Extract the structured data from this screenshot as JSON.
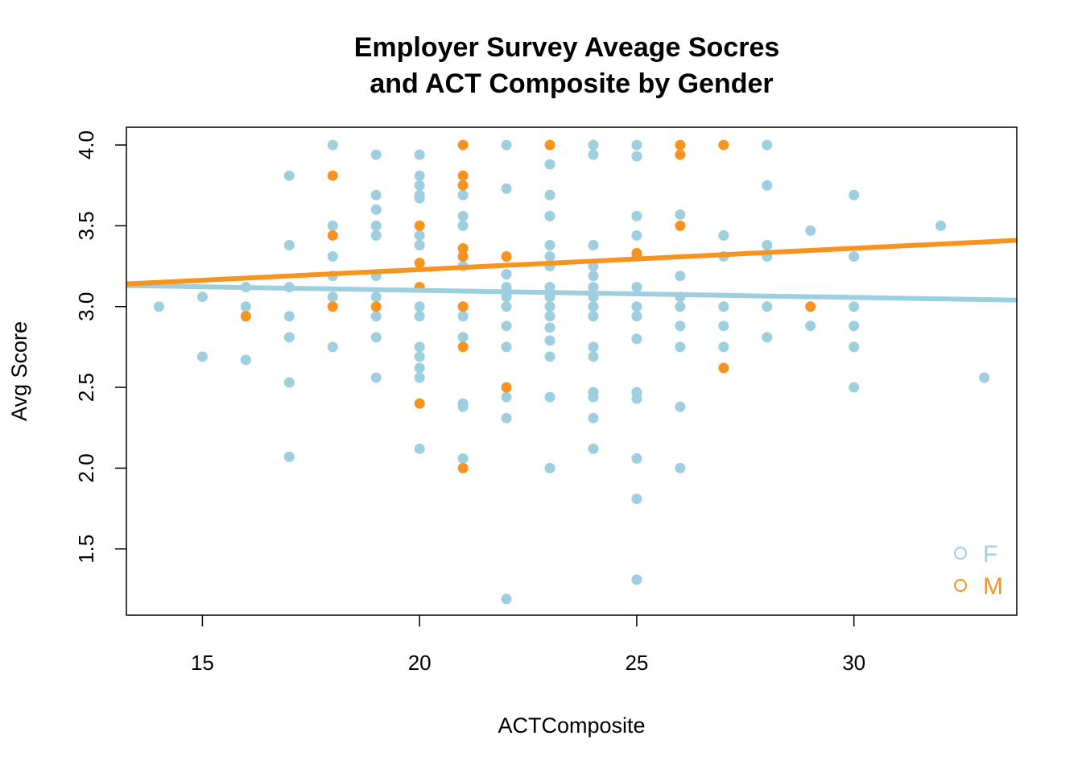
{
  "chart_data": {
    "type": "scatter",
    "title": [
      "Employer Survey Aveage Socres",
      "and ACT Composite by Gender"
    ],
    "xlabel": "ACTComposite",
    "ylabel": "Avg Score",
    "xlim": [
      13.25,
      33.75
    ],
    "ylim": [
      1.09,
      4.11
    ],
    "x_ticks": [
      15,
      20,
      25,
      30
    ],
    "y_ticks": [
      1.5,
      2.0,
      2.5,
      3.0,
      3.5,
      4.0
    ],
    "y_tick_labels": [
      "1.5",
      "2.0",
      "2.5",
      "3.0",
      "3.5",
      "4.0"
    ],
    "grid": false,
    "legend_position": "bottom-right",
    "series": [
      {
        "name": "F",
        "color": "#9ECFE0",
        "points": [
          [
            14,
            3.0
          ],
          [
            15,
            3.06
          ],
          [
            15,
            2.69
          ],
          [
            16,
            3.12
          ],
          [
            16,
            3.0
          ],
          [
            16,
            2.67
          ],
          [
            17,
            3.81
          ],
          [
            17,
            3.38
          ],
          [
            17,
            3.12
          ],
          [
            17,
            2.94
          ],
          [
            17,
            2.81
          ],
          [
            17,
            2.53
          ],
          [
            17,
            2.07
          ],
          [
            18,
            4.0
          ],
          [
            18,
            3.5
          ],
          [
            18,
            3.31
          ],
          [
            18,
            3.19
          ],
          [
            18,
            3.06
          ],
          [
            18,
            2.75
          ],
          [
            19,
            3.94
          ],
          [
            19,
            3.69
          ],
          [
            19,
            3.6
          ],
          [
            19,
            3.5
          ],
          [
            19,
            3.44
          ],
          [
            19,
            3.19
          ],
          [
            19,
            3.06
          ],
          [
            19,
            2.94
          ],
          [
            19,
            2.81
          ],
          [
            19,
            2.56
          ],
          [
            20,
            3.94
          ],
          [
            20,
            3.81
          ],
          [
            20,
            3.75
          ],
          [
            20,
            3.69
          ],
          [
            20,
            3.67
          ],
          [
            20,
            3.44
          ],
          [
            20,
            3.38
          ],
          [
            20,
            3.0
          ],
          [
            20,
            2.94
          ],
          [
            20,
            2.75
          ],
          [
            20,
            2.69
          ],
          [
            20,
            2.62
          ],
          [
            20,
            2.56
          ],
          [
            20,
            2.12
          ],
          [
            21,
            3.69
          ],
          [
            21,
            3.56
          ],
          [
            21,
            3.5
          ],
          [
            21,
            3.25
          ],
          [
            21,
            3.0
          ],
          [
            21,
            2.94
          ],
          [
            21,
            2.81
          ],
          [
            21,
            2.4
          ],
          [
            21,
            2.38
          ],
          [
            21,
            2.06
          ],
          [
            22,
            4.0
          ],
          [
            22,
            3.73
          ],
          [
            22,
            3.31
          ],
          [
            22,
            3.2
          ],
          [
            22,
            3.12
          ],
          [
            22,
            3.06
          ],
          [
            22,
            3.0
          ],
          [
            22,
            2.88
          ],
          [
            22,
            2.75
          ],
          [
            22,
            2.44
          ],
          [
            22,
            2.31
          ],
          [
            22,
            1.19
          ],
          [
            23,
            3.88
          ],
          [
            23,
            3.69
          ],
          [
            23,
            3.56
          ],
          [
            23,
            3.38
          ],
          [
            23,
            3.31
          ],
          [
            23,
            3.25
          ],
          [
            23,
            3.12
          ],
          [
            23,
            3.06
          ],
          [
            23,
            3.0
          ],
          [
            23,
            2.94
          ],
          [
            23,
            2.87
          ],
          [
            23,
            2.79
          ],
          [
            23,
            2.69
          ],
          [
            23,
            2.44
          ],
          [
            23,
            2.0
          ],
          [
            24,
            4.0
          ],
          [
            24,
            3.94
          ],
          [
            24,
            3.38
          ],
          [
            24,
            3.25
          ],
          [
            24,
            3.19
          ],
          [
            24,
            3.12
          ],
          [
            24,
            3.06
          ],
          [
            24,
            3.0
          ],
          [
            24,
            2.94
          ],
          [
            24,
            2.75
          ],
          [
            24,
            2.69
          ],
          [
            24,
            2.47
          ],
          [
            24,
            2.44
          ],
          [
            24,
            2.31
          ],
          [
            24,
            2.12
          ],
          [
            25,
            4.0
          ],
          [
            25,
            3.93
          ],
          [
            25,
            3.56
          ],
          [
            25,
            3.44
          ],
          [
            25,
            3.31
          ],
          [
            25,
            3.12
          ],
          [
            25,
            3.0
          ],
          [
            25,
            2.94
          ],
          [
            25,
            2.8
          ],
          [
            25,
            2.47
          ],
          [
            25,
            2.43
          ],
          [
            25,
            2.06
          ],
          [
            25,
            1.81
          ],
          [
            25,
            1.31
          ],
          [
            26,
            3.57
          ],
          [
            26,
            3.19
          ],
          [
            26,
            3.06
          ],
          [
            26,
            3.0
          ],
          [
            26,
            2.88
          ],
          [
            26,
            2.75
          ],
          [
            26,
            2.38
          ],
          [
            26,
            2.0
          ],
          [
            27,
            3.44
          ],
          [
            27,
            3.31
          ],
          [
            27,
            3.0
          ],
          [
            27,
            2.88
          ],
          [
            27,
            2.75
          ],
          [
            28,
            4.0
          ],
          [
            28,
            3.75
          ],
          [
            28,
            3.38
          ],
          [
            28,
            3.31
          ],
          [
            28,
            3.0
          ],
          [
            28,
            2.81
          ],
          [
            29,
            3.47
          ],
          [
            29,
            2.88
          ],
          [
            30,
            3.69
          ],
          [
            30,
            3.31
          ],
          [
            30,
            3.0
          ],
          [
            30,
            2.88
          ],
          [
            30,
            2.75
          ],
          [
            30,
            2.5
          ],
          [
            32,
            3.5
          ],
          [
            33,
            2.56
          ]
        ],
        "fit_line": [
          [
            13.25,
            3.13
          ],
          [
            33.75,
            3.04
          ]
        ]
      },
      {
        "name": "M",
        "color": "#F7931E",
        "points": [
          [
            16,
            2.94
          ],
          [
            18,
            3.81
          ],
          [
            18,
            3.44
          ],
          [
            18,
            3.0
          ],
          [
            19,
            3.0
          ],
          [
            20,
            3.5
          ],
          [
            20,
            3.27
          ],
          [
            20,
            3.12
          ],
          [
            20,
            2.4
          ],
          [
            21,
            4.0
          ],
          [
            21,
            3.81
          ],
          [
            21,
            3.75
          ],
          [
            21,
            3.36
          ],
          [
            21,
            3.31
          ],
          [
            21,
            3.0
          ],
          [
            21,
            2.75
          ],
          [
            21,
            2.0
          ],
          [
            22,
            3.31
          ],
          [
            22,
            2.5
          ],
          [
            23,
            4.0
          ],
          [
            25,
            3.33
          ],
          [
            26,
            4.0
          ],
          [
            26,
            3.94
          ],
          [
            26,
            3.5
          ],
          [
            27,
            4.0
          ],
          [
            27,
            2.62
          ],
          [
            29,
            3.0
          ]
        ],
        "fit_line": [
          [
            13.25,
            3.14
          ],
          [
            33.75,
            3.41
          ]
        ]
      }
    ]
  }
}
